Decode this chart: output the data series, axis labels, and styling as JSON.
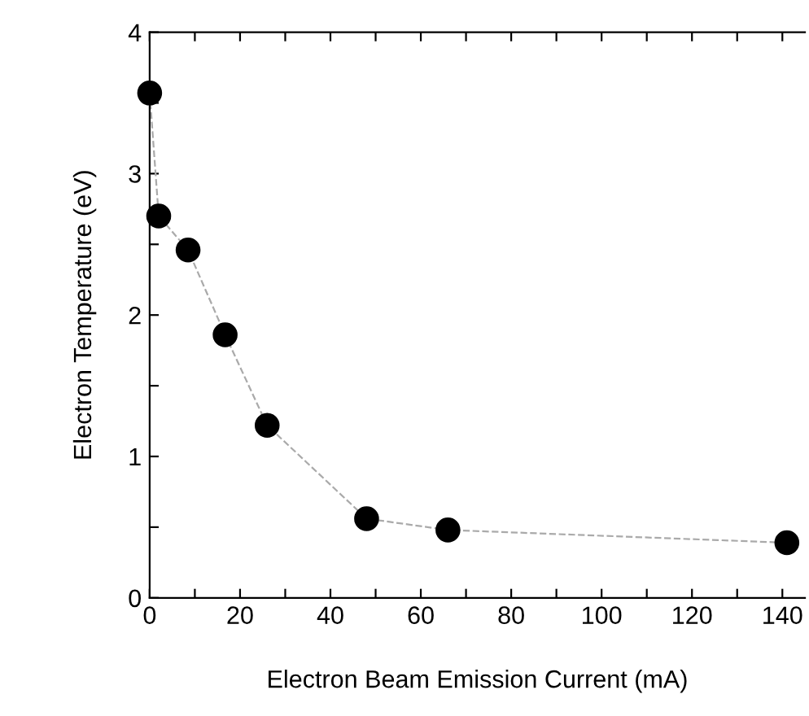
{
  "chart_data": {
    "type": "line",
    "xlabel": "Electron Beam Emission Current (mA)",
    "ylabel": "Electron Temperature (eV)",
    "x": [
      0,
      2,
      8.5,
      16.7,
      26,
      48,
      66,
      141
    ],
    "series": [
      {
        "color": "#000000",
        "values": [
          3.57,
          2.7,
          2.46,
          1.86,
          1.22,
          0.56,
          0.48,
          0.39
        ]
      }
    ],
    "xlim": [
      0,
      145
    ],
    "ylim": [
      0,
      4
    ],
    "xticks": [
      0,
      {
        "value": 10,
        "label": null
      },
      20,
      {
        "value": 30,
        "label": null
      },
      40,
      {
        "value": 50,
        "label": null
      },
      60,
      {
        "value": 70,
        "label": null
      },
      80,
      {
        "value": 90,
        "label": null
      },
      100,
      {
        "value": 110,
        "label": null
      },
      120,
      {
        "value": 130,
        "label": null
      },
      140
    ],
    "yticks": [
      0,
      {
        "value": 0.5,
        "label": null
      },
      1,
      {
        "value": 1.5,
        "label": null
      },
      2,
      {
        "value": 2.5,
        "label": null
      },
      3,
      {
        "value": 3.5,
        "label": null
      },
      4
    ],
    "marker": "circle",
    "line_style": "dashed",
    "grid": false,
    "legend": false
  }
}
